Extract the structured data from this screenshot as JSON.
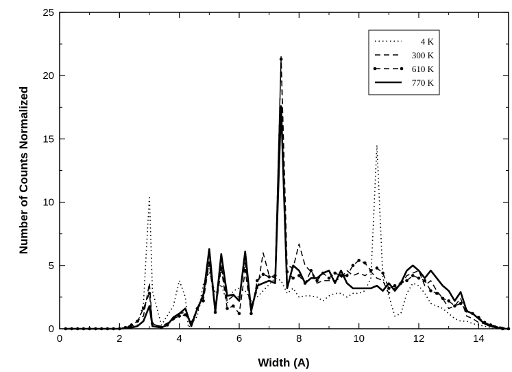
{
  "chart_data": {
    "type": "line",
    "xlabel": "Width (A)",
    "ylabel": "Number of Counts Normalized",
    "xlim": [
      0,
      15
    ],
    "ylim": [
      0,
      25
    ],
    "xticks": [
      "0",
      "2",
      "4",
      "6",
      "8",
      "10",
      "12",
      "14"
    ],
    "yticks": [
      "0",
      "5",
      "10",
      "15",
      "20",
      "25"
    ],
    "grid": false,
    "legend_position": "top-right",
    "series": [
      {
        "name": "4 K",
        "style": "dotted",
        "color": "#000000",
        "x": [
          0.2,
          2.0,
          2.6,
          2.8,
          3.0,
          3.1,
          3.4,
          3.8,
          4.0,
          4.2,
          4.3,
          4.6,
          4.8,
          5.0,
          5.2,
          5.4,
          5.6,
          5.8,
          6.0,
          6.2,
          6.4,
          6.6,
          6.8,
          7.0,
          7.2,
          7.4,
          7.6,
          7.8,
          8.0,
          8.2,
          8.4,
          8.6,
          8.8,
          9.0,
          9.2,
          9.4,
          9.6,
          9.8,
          10.0,
          10.2,
          10.4,
          10.6,
          10.8,
          11.0,
          11.2,
          11.4,
          11.6,
          11.8,
          12.0,
          12.2,
          12.4,
          12.6,
          12.8,
          13.0,
          13.2,
          13.4,
          13.6,
          13.8,
          14.0,
          14.2,
          14.5,
          15.0
        ],
        "y": [
          0,
          0,
          0.3,
          2.0,
          10.5,
          3.0,
          0.3,
          1.8,
          3.8,
          2.5,
          0.1,
          1.0,
          3.5,
          4.5,
          2.8,
          3.5,
          2.0,
          3.0,
          3.2,
          3.0,
          2.2,
          2.5,
          3.0,
          3.5,
          4.0,
          3.8,
          2.8,
          3.2,
          2.5,
          2.6,
          2.6,
          2.5,
          2.2,
          2.6,
          2.8,
          2.8,
          2.5,
          2.8,
          2.8,
          3.0,
          4.0,
          14.5,
          4.0,
          2.6,
          1.0,
          1.2,
          2.8,
          3.6,
          3.4,
          2.8,
          2.0,
          1.8,
          1.6,
          1.2,
          0.8,
          0.6,
          0.6,
          0.4,
          0.3,
          0.2,
          0,
          0
        ]
      },
      {
        "name": "300 K",
        "style": "dashed",
        "color": "#000000",
        "x": [
          0.2,
          2.0,
          2.4,
          2.6,
          2.8,
          3.0,
          3.1,
          3.4,
          3.8,
          4.0,
          4.2,
          4.4,
          4.6,
          4.8,
          5.0,
          5.2,
          5.4,
          5.6,
          5.8,
          6.0,
          6.2,
          6.4,
          6.6,
          6.8,
          7.0,
          7.2,
          7.4,
          7.6,
          7.8,
          8.0,
          8.2,
          8.4,
          8.6,
          8.8,
          9.0,
          9.2,
          9.4,
          9.6,
          9.8,
          10.0,
          10.2,
          10.4,
          10.6,
          10.8,
          11.0,
          11.2,
          11.4,
          11.6,
          11.8,
          12.0,
          12.2,
          12.4,
          12.6,
          12.8,
          13.0,
          13.2,
          13.4,
          13.6,
          13.8,
          14.0,
          14.2,
          14.4,
          14.6,
          15.0
        ],
        "y": [
          0,
          0,
          0.2,
          0.6,
          1.0,
          3.6,
          0.3,
          0.2,
          0.7,
          1.2,
          1.3,
          0.5,
          1.5,
          2.8,
          5.2,
          1.8,
          5.0,
          2.2,
          2.6,
          2.5,
          5.2,
          1.8,
          3.0,
          6.0,
          4.2,
          4.0,
          21.5,
          5.0,
          4.8,
          6.7,
          5.0,
          4.5,
          3.6,
          3.8,
          3.8,
          3.8,
          4.0,
          4.6,
          4.2,
          4.4,
          4.2,
          4.5,
          4.0,
          3.8,
          2.8,
          3.2,
          3.5,
          4.2,
          4.4,
          4.6,
          3.4,
          3.8,
          3.0,
          2.4,
          1.6,
          1.8,
          2.4,
          1.0,
          0.8,
          0.5,
          0.4,
          0.3,
          0.2,
          0
        ]
      },
      {
        "name": "610 K",
        "style": "dashed-circle",
        "color": "#000000",
        "x": [
          0.2,
          0.4,
          0.6,
          0.8,
          1.0,
          1.2,
          1.4,
          1.6,
          1.8,
          2.0,
          2.2,
          2.4,
          2.6,
          2.8,
          3.0,
          3.1,
          3.4,
          3.6,
          3.8,
          4.0,
          4.2,
          4.4,
          4.6,
          4.8,
          5.0,
          5.2,
          5.4,
          5.6,
          5.8,
          6.0,
          6.2,
          6.4,
          6.6,
          6.8,
          7.0,
          7.2,
          7.4,
          7.6,
          7.8,
          8.0,
          8.2,
          8.4,
          8.6,
          8.8,
          9.0,
          9.2,
          9.4,
          9.6,
          9.8,
          10.0,
          10.2,
          10.4,
          10.6,
          10.8,
          11.0,
          11.2,
          11.4,
          11.6,
          11.8,
          12.0,
          12.2,
          12.4,
          12.6,
          12.8,
          13.0,
          13.2,
          13.4,
          13.6,
          13.8,
          14.0,
          14.2,
          14.4,
          14.6,
          14.8,
          15.0
        ],
        "y": [
          0,
          0,
          0,
          0,
          0,
          0,
          0,
          0,
          0,
          0,
          0.1,
          0.3,
          0.6,
          1.6,
          2.8,
          0.4,
          0.1,
          0.3,
          0.8,
          1.0,
          1.1,
          0.5,
          1.6,
          2.2,
          5.2,
          1.3,
          4.8,
          1.6,
          1.8,
          1.2,
          4.6,
          1.2,
          3.8,
          4.3,
          4.1,
          4.2,
          21.3,
          4.5,
          4.0,
          4.2,
          3.6,
          4.6,
          3.8,
          4.4,
          4.0,
          4.4,
          4.2,
          4.2,
          5.0,
          5.4,
          5.2,
          4.6,
          4.8,
          4.4,
          3.2,
          3.4,
          3.6,
          3.8,
          4.2,
          4.0,
          3.8,
          3.0,
          2.8,
          2.4,
          2.2,
          1.8,
          2.0,
          1.4,
          1.2,
          0.9,
          0.5,
          0.3,
          0.1,
          0,
          0
        ]
      },
      {
        "name": "770 K",
        "style": "solid",
        "color": "#000000",
        "x": [
          0.2,
          2.0,
          2.4,
          2.6,
          2.8,
          3.0,
          3.1,
          3.4,
          3.6,
          3.8,
          4.0,
          4.2,
          4.4,
          4.6,
          4.8,
          5.0,
          5.2,
          5.4,
          5.6,
          5.8,
          6.0,
          6.2,
          6.4,
          6.6,
          6.8,
          7.0,
          7.2,
          7.4,
          7.6,
          7.8,
          8.0,
          8.2,
          8.4,
          8.6,
          8.8,
          9.0,
          9.2,
          9.4,
          9.6,
          9.8,
          10.0,
          10.2,
          10.4,
          10.6,
          10.8,
          11.0,
          11.2,
          11.4,
          11.6,
          11.8,
          12.0,
          12.2,
          12.4,
          12.6,
          12.8,
          13.0,
          13.2,
          13.4,
          13.6,
          13.8,
          14.0,
          14.2,
          14.4,
          14.6,
          14.8,
          15.0
        ],
        "y": [
          0,
          0,
          0.1,
          0.2,
          0.6,
          1.8,
          0.2,
          0.1,
          0.3,
          0.9,
          1.2,
          1.6,
          0.2,
          1.6,
          2.6,
          6.3,
          1.3,
          5.9,
          2.6,
          2.7,
          2.2,
          6.1,
          1.4,
          3.4,
          3.6,
          3.8,
          3.6,
          17.6,
          3.2,
          5.0,
          4.6,
          3.6,
          4.0,
          4.0,
          4.4,
          4.6,
          3.6,
          4.6,
          3.6,
          3.2,
          3.2,
          3.2,
          3.2,
          3.4,
          3.0,
          3.6,
          3.0,
          3.6,
          4.6,
          5.0,
          4.6,
          4.0,
          4.6,
          4.0,
          3.4,
          3.0,
          2.2,
          2.9,
          1.4,
          1.2,
          0.8,
          0.4,
          0.2,
          0.1,
          0,
          0
        ]
      }
    ]
  }
}
